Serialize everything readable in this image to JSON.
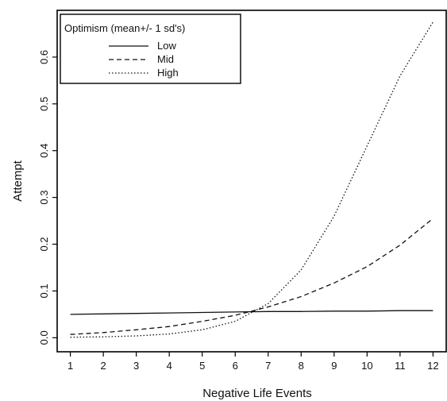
{
  "chart_data": {
    "type": "line",
    "xlabel": "Negative Life Events",
    "ylabel": "Attempt",
    "xlim": [
      0.6,
      12.4
    ],
    "ylim": [
      -0.03,
      0.7
    ],
    "xticks": [
      1,
      2,
      3,
      4,
      5,
      6,
      7,
      8,
      9,
      10,
      11,
      12
    ],
    "yticks": [
      0.0,
      0.1,
      0.2,
      0.3,
      0.4,
      0.5,
      0.6
    ],
    "ytick_labels": [
      "0.0",
      "0.1",
      "0.2",
      "0.3",
      "0.4",
      "0.5",
      "0.6"
    ],
    "grid": false,
    "legend": {
      "title": "Optimism (mean+/- 1 sd's)",
      "placement": "top-left"
    },
    "x": [
      1,
      2,
      3,
      4,
      5,
      6,
      7,
      8,
      9,
      10,
      11,
      12
    ],
    "series": [
      {
        "name": "Low",
        "style": "solid",
        "values": [
          0.05,
          0.051,
          0.052,
          0.053,
          0.054,
          0.055,
          0.056,
          0.056,
          0.057,
          0.057,
          0.058,
          0.058
        ]
      },
      {
        "name": "Mid",
        "style": "dashed",
        "values": [
          0.007,
          0.011,
          0.017,
          0.024,
          0.035,
          0.048,
          0.066,
          0.088,
          0.117,
          0.152,
          0.198,
          0.255
        ]
      },
      {
        "name": "High",
        "style": "dotted",
        "values": [
          0.001,
          0.002,
          0.004,
          0.008,
          0.017,
          0.035,
          0.073,
          0.145,
          0.26,
          0.41,
          0.56,
          0.675
        ]
      }
    ]
  }
}
